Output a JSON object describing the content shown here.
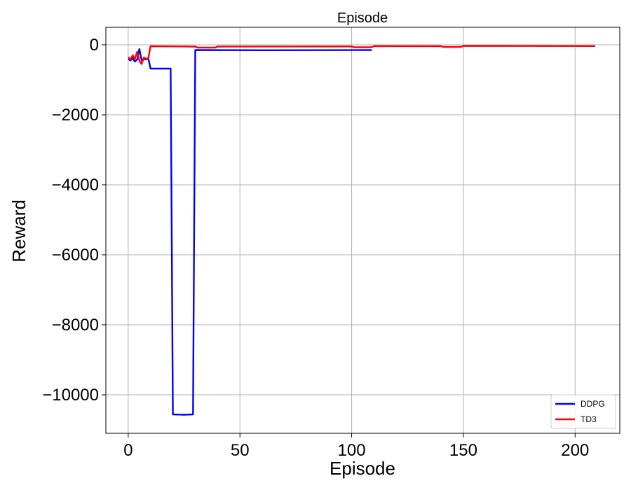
{
  "chart_data": {
    "type": "line",
    "title": "Episode",
    "xlabel": "Episode",
    "ylabel": "Reward",
    "xlim": [
      -10,
      220
    ],
    "ylim": [
      -11100,
      500
    ],
    "xticks": [
      0,
      50,
      100,
      150,
      200
    ],
    "yticks": [
      0,
      -2000,
      -4000,
      -6000,
      -8000,
      -10000
    ],
    "xtick_labels": [
      "0",
      "50",
      "100",
      "150",
      "200"
    ],
    "ytick_labels": [
      "0",
      "−2000",
      "−4000",
      "−6000",
      "−8000",
      "−10000"
    ],
    "grid": true,
    "legend_position": "bottom-right",
    "series": [
      {
        "name": "DDPG",
        "color": "#0000ff",
        "points": [
          [
            0,
            -400
          ],
          [
            1,
            -450
          ],
          [
            2,
            -380
          ],
          [
            3,
            -480
          ],
          [
            4,
            -420
          ],
          [
            5,
            -120
          ],
          [
            6,
            -450
          ],
          [
            7,
            -400
          ],
          [
            8,
            -420
          ],
          [
            9,
            -390
          ],
          [
            10,
            -680
          ],
          [
            19,
            -680
          ],
          [
            20,
            -10560
          ],
          [
            25,
            -10570
          ],
          [
            29,
            -10560
          ],
          [
            30,
            -150
          ],
          [
            60,
            -155
          ],
          [
            109,
            -150
          ]
        ]
      },
      {
        "name": "TD3",
        "color": "#ff0000",
        "points": [
          [
            0,
            -350
          ],
          [
            1,
            -420
          ],
          [
            2,
            -300
          ],
          [
            3,
            -400
          ],
          [
            4,
            -200
          ],
          [
            5,
            -460
          ],
          [
            6,
            -550
          ],
          [
            7,
            -360
          ],
          [
            8,
            -400
          ],
          [
            9,
            -380
          ],
          [
            10,
            -40
          ],
          [
            30,
            -50
          ],
          [
            31,
            -80
          ],
          [
            39,
            -80
          ],
          [
            40,
            -50
          ],
          [
            100,
            -45
          ],
          [
            101,
            -70
          ],
          [
            109,
            -70
          ],
          [
            110,
            -35
          ],
          [
            140,
            -40
          ],
          [
            141,
            -60
          ],
          [
            149,
            -60
          ],
          [
            150,
            -30
          ],
          [
            209,
            -35
          ]
        ]
      }
    ]
  }
}
